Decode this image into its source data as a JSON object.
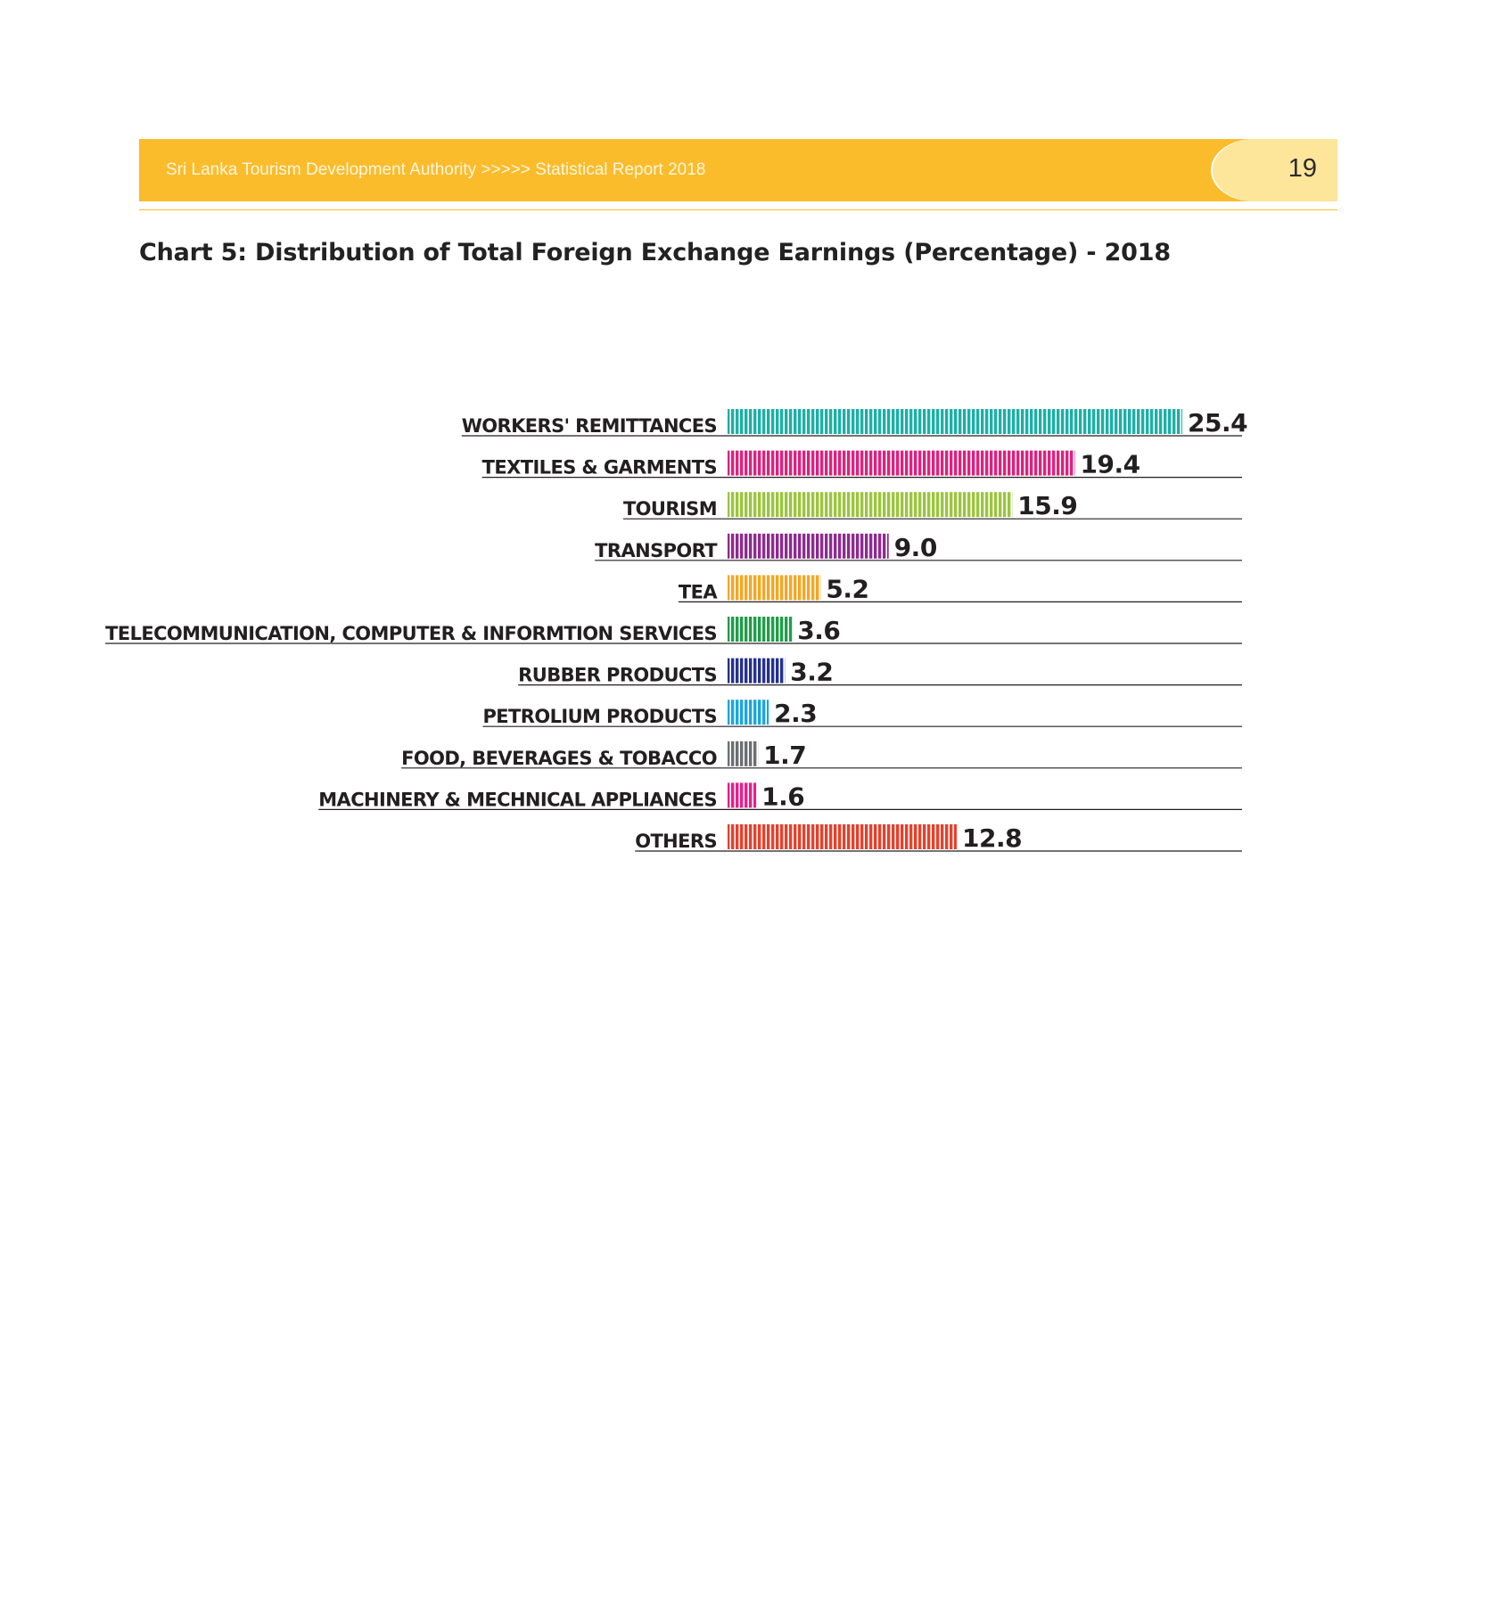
{
  "header": {
    "text": "Sri Lanka Tourism Development Authority >>>>> Statistical Report 2018",
    "page_number": "19"
  },
  "colors": {
    "header_band": "#fbbc2c",
    "page_tab": "#fde59a"
  },
  "chart_data": {
    "type": "bar",
    "orientation": "horizontal",
    "title": "Chart 5: Distribution of Total Foreign Exchange Earnings (Percentage) - 2018",
    "xlabel": "",
    "ylabel": "",
    "grid": false,
    "xlim": [
      0,
      25.4
    ],
    "categories": [
      "WORKERS' REMITTANCES",
      "TEXTILES & GARMENTS",
      "TOURISM",
      "TRANSPORT",
      "TEA",
      "TELECOMMUNICATION, COMPUTER & INFORMTION SERVICES",
      "RUBBER PRODUCTS",
      "PETROLIUM PRODUCTS",
      "FOOD, BEVERAGES & TOBACCO",
      "MACHINERY & MECHNICAL APPLIANCES",
      "OTHERS"
    ],
    "values": [
      25.4,
      19.4,
      15.9,
      9.0,
      5.2,
      3.6,
      3.2,
      2.3,
      1.7,
      1.6,
      12.8
    ],
    "value_labels": [
      "25.4",
      "19.4",
      "15.9",
      "9.0",
      "5.2",
      "3.6",
      "3.2",
      "2.3",
      "1.7",
      "1.6",
      "12.8"
    ],
    "colors": [
      "#1bb0a6",
      "#e0207d",
      "#9bc53d",
      "#8e2a8f",
      "#f5a623",
      "#1f9e48",
      "#24318f",
      "#1aa6df",
      "#6d6e71",
      "#ec1c8c",
      "#e8402a"
    ]
  }
}
